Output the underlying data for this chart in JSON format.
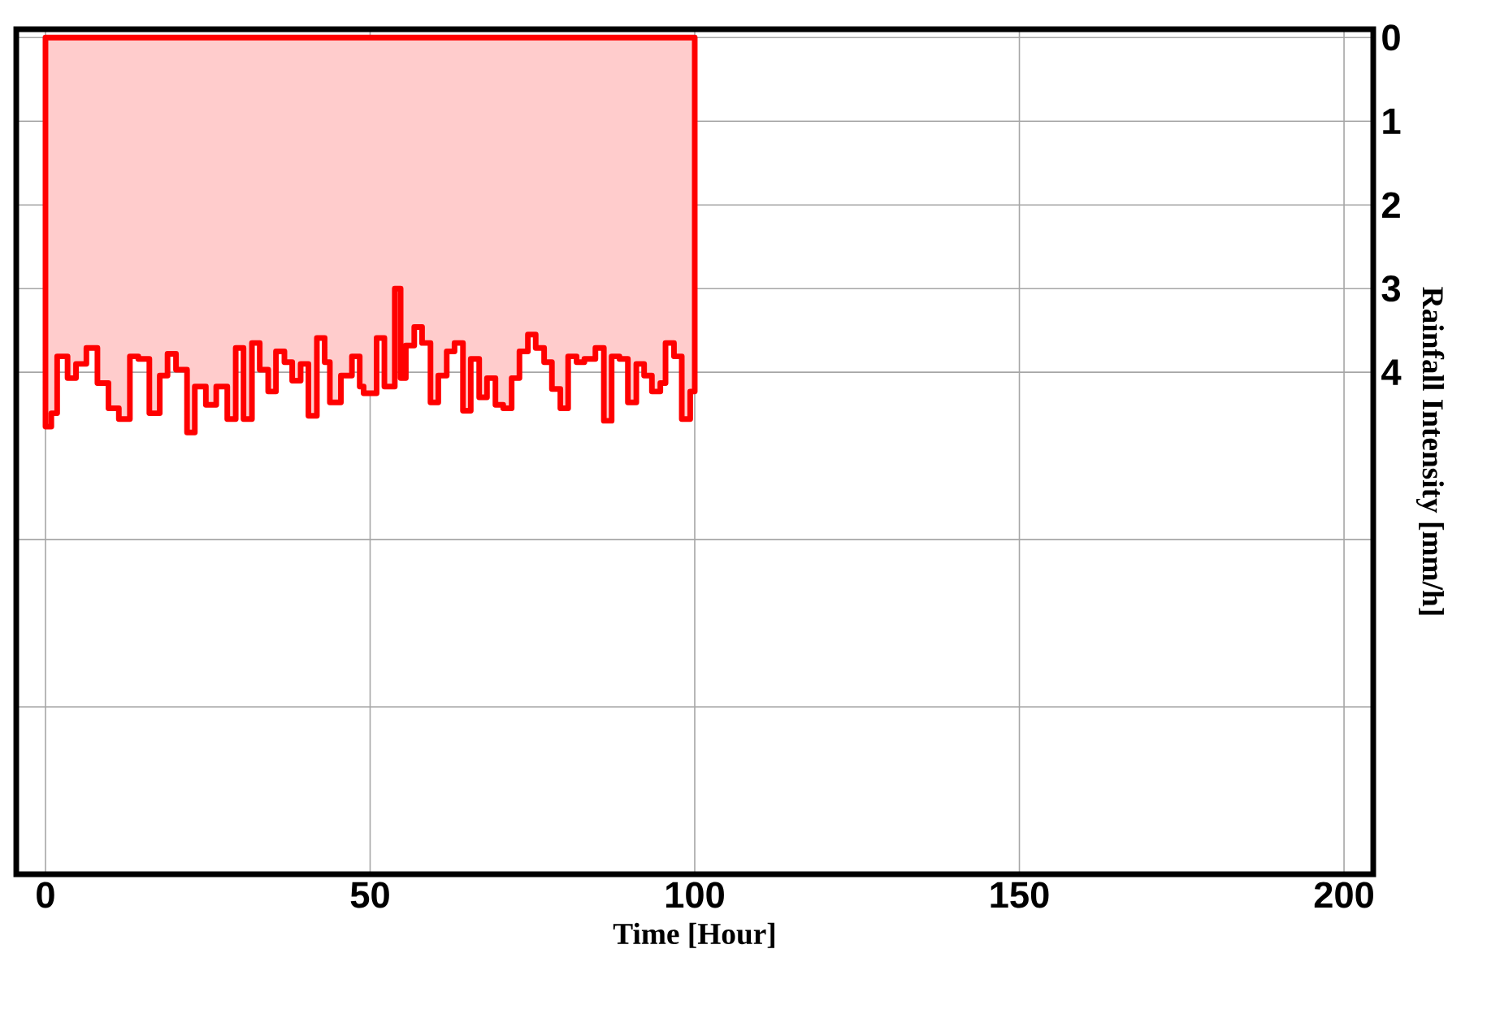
{
  "chart_data": {
    "type": "area",
    "xlabel": "Time [Hour]",
    "ylabel": "Rainfall Intensity [mm/h]",
    "xlim": [
      -4.5,
      204.5
    ],
    "ylim": [
      10,
      -0.1
    ],
    "xticks": [
      0,
      50,
      100,
      150,
      200
    ],
    "yticks": [
      0,
      1,
      2,
      3,
      4,
      {
        "value": 6,
        "label": null
      },
      {
        "value": 8,
        "label": null
      }
    ],
    "grid": true,
    "series": [
      {
        "color": "#ff0000",
        "x": [
          0,
          0.9,
          1.8,
          3.4,
          4.7,
          6.3,
          8,
          9.7,
          11.3,
          13,
          14.3,
          16,
          17.6,
          18.8,
          20.1,
          21.8,
          23,
          24.7,
          26.3,
          28,
          29.3,
          30.5,
          31.8,
          33,
          34.3,
          35.5,
          36.8,
          38,
          39.3,
          40.5,
          41.8,
          43,
          43.8,
          45.5,
          47.2,
          48.4,
          49,
          51,
          52.2,
          53.8,
          54.7,
          55.5,
          56.8,
          58,
          59.3,
          60.5,
          61.8,
          63,
          64.3,
          65.5,
          66.8,
          68,
          69.3,
          70.5,
          71.8,
          73,
          74.3,
          75.5,
          76.8,
          78,
          79.3,
          80.5,
          81.8,
          83,
          84.7,
          86,
          87.2,
          88.4,
          89.7,
          91,
          92.2,
          93.4,
          94.7,
          95.5,
          96.8,
          98,
          99.3,
          100
        ],
        "values": [
          4.65,
          4.49,
          3.81,
          4.07,
          3.9,
          3.71,
          4.13,
          4.43,
          4.56,
          3.81,
          3.84,
          4.49,
          4.04,
          3.78,
          3.97,
          4.72,
          4.17,
          4.39,
          4.17,
          4.56,
          3.71,
          4.56,
          3.65,
          3.97,
          4.23,
          3.75,
          3.88,
          4.1,
          3.9,
          4.52,
          3.59,
          3.88,
          4.36,
          4.04,
          3.81,
          4.17,
          4.25,
          3.59,
          4.17,
          3.0,
          4.07,
          3.68,
          3.46,
          3.65,
          4.36,
          4.04,
          3.75,
          3.65,
          4.46,
          3.84,
          4.3,
          4.07,
          4.39,
          4.43,
          4.07,
          3.75,
          3.55,
          3.71,
          3.88,
          4.2,
          4.43,
          3.81,
          3.88,
          3.84,
          3.71,
          4.58,
          3.81,
          3.84,
          4.36,
          3.9,
          4.04,
          4.23,
          4.13,
          3.65,
          3.81,
          4.56,
          4.23,
          4.23
        ]
      }
    ]
  }
}
